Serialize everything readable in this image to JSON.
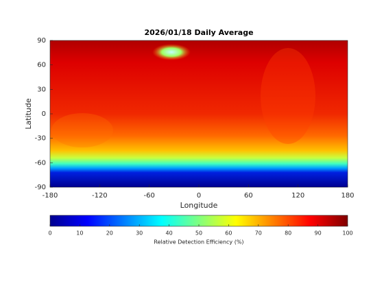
{
  "chart_data": {
    "type": "map",
    "title": "2026/01/18 Daily Average",
    "xlabel": "Longitude",
    "ylabel": "Latitude",
    "xlim": [
      -180,
      180
    ],
    "ylim": [
      -90,
      90
    ],
    "xticks": [
      -180,
      -120,
      -60,
      0,
      60,
      120,
      180
    ],
    "yticks": [
      -90,
      -60,
      -30,
      0,
      30,
      60,
      90
    ],
    "colorbar": {
      "label": "Relative Detection Efficiency (%)",
      "lim": [
        0,
        100
      ],
      "ticks": [
        0,
        10,
        20,
        30,
        40,
        50,
        60,
        70,
        80,
        90,
        100
      ]
    }
  }
}
